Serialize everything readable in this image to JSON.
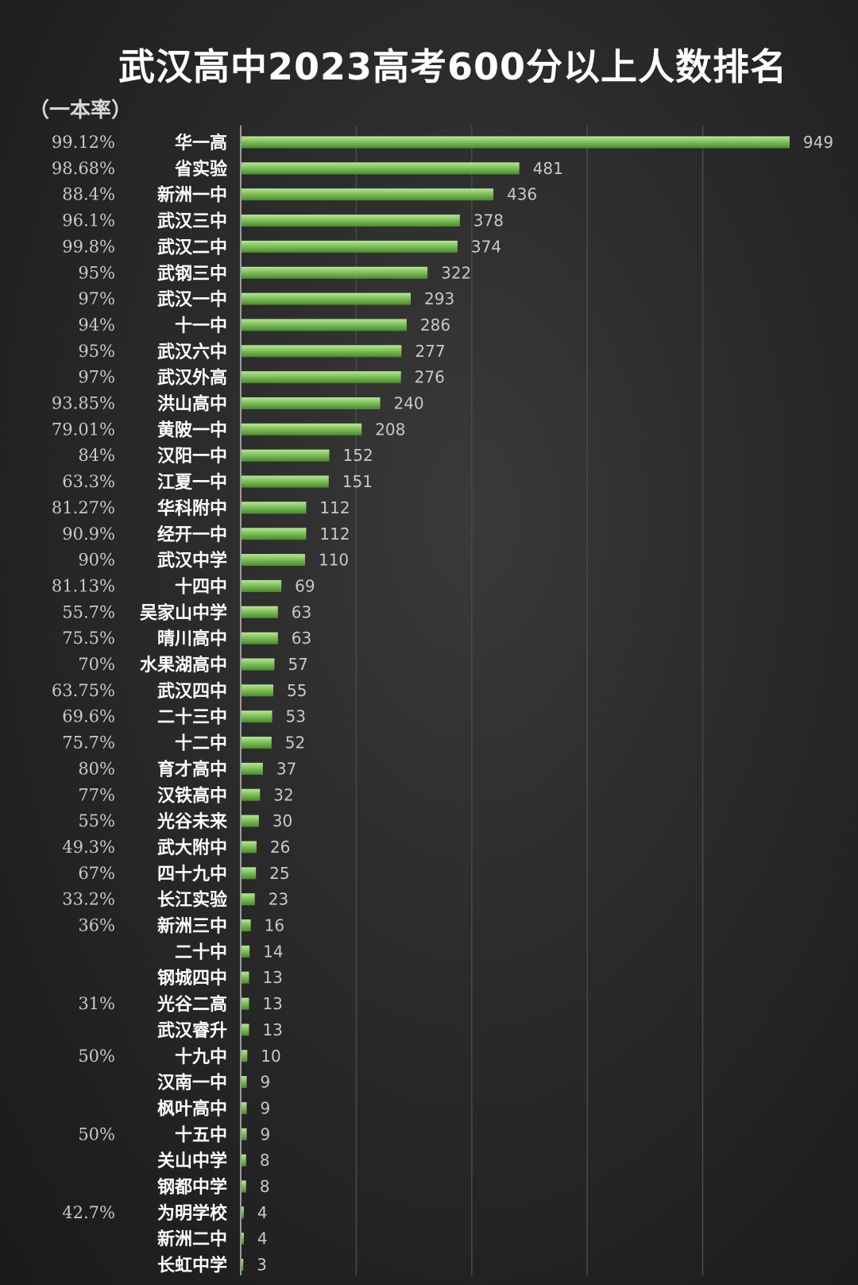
{
  "chart_data": {
    "type": "bar",
    "orientation": "horizontal",
    "title": "武汉高中2023高考600分以上人数排名",
    "rate_header": "（一本率）",
    "categories": [
      "华一高",
      "省实验",
      "新洲一中",
      "武汉三中",
      "武汉二中",
      "武钢三中",
      "武汉一中",
      "十一中",
      "武汉六中",
      "武汉外高",
      "洪山高中",
      "黄陂一中",
      "汉阳一中",
      "江夏一中",
      "华科附中",
      "经开一中",
      "武汉中学",
      "十四中",
      "吴家山中学",
      "晴川高中",
      "水果湖高中",
      "武汉四中",
      "二十三中",
      "十二中",
      "育才高中",
      "汉铁高中",
      "光谷未来",
      "武大附中",
      "四十九中",
      "长江实验",
      "新洲三中",
      "二十中",
      "钢城四中",
      "光谷二高",
      "武汉睿升",
      "十九中",
      "汉南一中",
      "枫叶高中",
      "十五中",
      "关山中学",
      "钢都中学",
      "为明学校",
      "新洲二中",
      "长虹中学"
    ],
    "values": [
      949,
      481,
      436,
      378,
      374,
      322,
      293,
      286,
      277,
      276,
      240,
      208,
      152,
      151,
      112,
      112,
      110,
      69,
      63,
      63,
      57,
      55,
      53,
      52,
      37,
      32,
      30,
      26,
      25,
      23,
      16,
      14,
      13,
      13,
      13,
      10,
      9,
      9,
      9,
      8,
      8,
      4,
      4,
      3
    ],
    "rates": [
      "99.12%",
      "98.68%",
      "88.4%",
      "96.1%",
      "99.8%",
      "95%",
      "97%",
      "94%",
      "95%",
      "97%",
      "93.85%",
      "79.01%",
      "84%",
      "63.3%",
      "81.27%",
      "90.9%",
      "90%",
      "81.13%",
      "55.7%",
      "75.5%",
      "70%",
      "63.75%",
      "69.6%",
      "75.7%",
      "80%",
      "77%",
      "55%",
      "49.3%",
      "67%",
      "33.2%",
      "36%",
      "",
      "",
      "31%",
      "",
      "50%",
      "",
      "",
      "50%",
      "",
      "",
      "42.7%",
      "",
      ""
    ],
    "xlim": [
      0,
      1000
    ],
    "grid": true,
    "legend": "none",
    "colors": {
      "bar_light": "#9bd07a",
      "bar_mid": "#6fb04c",
      "bar_dark": "#4f8f33"
    }
  }
}
